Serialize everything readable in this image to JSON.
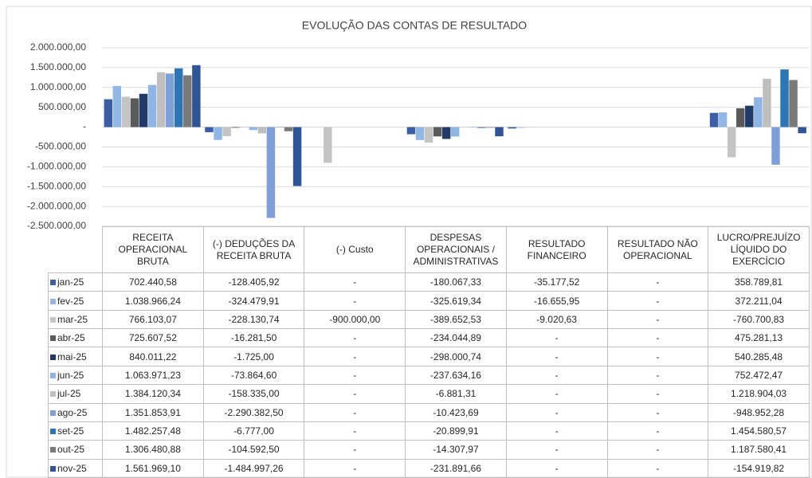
{
  "chart_data": {
    "type": "bar",
    "title": "EVOLUÇÃO DAS CONTAS DE RESULTADO",
    "categories": [
      "RECEITA OPERACIONAL BRUTA",
      "(-) DEDUÇÕES DA RECEITA BRUTA",
      "(-) Custo",
      "DESPESAS OPERACIONAIS / ADMINISTRATIVAS",
      "RESULTADO FINANCEIRO",
      "RESULTADO NÃO OPERACIONAL",
      "LUCRO/PREJUÍZO LÍQUIDO DO EXERCÍCIO"
    ],
    "ylim": [
      -2500000,
      2000000
    ],
    "yticks": [
      {
        "value": -2500000,
        "label": "-2.500.000,00"
      },
      {
        "value": -2000000,
        "label": "-2.000.000,00"
      },
      {
        "value": -1500000,
        "label": "-1.500.000,00"
      },
      {
        "value": -1000000,
        "label": "-1.000.000,00"
      },
      {
        "value": -500000,
        "label": "-500.000,00"
      },
      {
        "value": 0,
        "label": "-"
      },
      {
        "value": 500000,
        "label": "500.000,00"
      },
      {
        "value": 1000000,
        "label": "1.000.000,00"
      },
      {
        "value": 1500000,
        "label": "1.500.000,00"
      },
      {
        "value": 2000000,
        "label": "2.000.000,00"
      }
    ],
    "grid": true,
    "series": [
      {
        "name": "jan-25",
        "color": "#3c5ea6",
        "values": [
          702440.58,
          -128405.92,
          0,
          -180067.33,
          -35177.52,
          0,
          358789.81
        ],
        "value_labels": [
          "702.440,58",
          "-128.405,92",
          "-",
          "-180.067,33",
          "-35.177,52",
          "-",
          "358.789,81"
        ]
      },
      {
        "name": "fev-25",
        "color": "#92b7e5",
        "values": [
          1038966.24,
          -324479.91,
          0,
          -325619.34,
          -16655.95,
          0,
          372211.04
        ],
        "value_labels": [
          "1.038.966,24",
          "-324.479,91",
          "-",
          "-325.619,34",
          "-16.655,95",
          "-",
          "372.211,04"
        ]
      },
      {
        "name": "mar-25",
        "color": "#c4c4c4",
        "values": [
          766103.07,
          -228130.74,
          -900000,
          -389652.53,
          -9020.63,
          0,
          -760700.83
        ],
        "value_labels": [
          "766.103,07",
          "-228.130,74",
          "-900.000,00",
          "-389.652,53",
          "-9.020,63",
          "-",
          "-760.700,83"
        ]
      },
      {
        "name": "abr-25",
        "color": "#5a5a5a",
        "values": [
          725607.52,
          -16281.5,
          0,
          -234044.89,
          0,
          0,
          475281.13
        ],
        "value_labels": [
          "725.607,52",
          "-16.281,50",
          "-",
          "-234.044,89",
          "-",
          "-",
          "475.281,13"
        ]
      },
      {
        "name": "mai-25",
        "color": "#223a68",
        "values": [
          840011.22,
          -1725,
          0,
          -298000.74,
          0,
          0,
          540285.48
        ],
        "value_labels": [
          "840.011,22",
          "-1.725,00",
          "-",
          "-298.000,74",
          "-",
          "-",
          "540.285,48"
        ]
      },
      {
        "name": "jun-25",
        "color": "#8fb5e4",
        "values": [
          1063971.23,
          -73864.6,
          0,
          -237634.16,
          0,
          0,
          752472.47
        ],
        "value_labels": [
          "1.063.971,23",
          "-73.864,60",
          "-",
          "-237.634,16",
          "-",
          "-",
          "752.472,47"
        ]
      },
      {
        "name": "jul-25",
        "color": "#bfbfbf",
        "values": [
          1384120.34,
          -158335,
          0,
          -6881.31,
          0,
          0,
          1218904.03
        ],
        "value_labels": [
          "1.384.120,34",
          "-158.335,00",
          "-",
          "-6.881,31",
          "-",
          "-",
          "1.218.904,03"
        ]
      },
      {
        "name": "ago-25",
        "color": "#7f9fd9",
        "values": [
          1351853.91,
          -2290382.5,
          0,
          -10423.69,
          0,
          0,
          -948952.28
        ],
        "value_labels": [
          "1.351.853,91",
          "-2.290.382,50",
          "-",
          "-10.423,69",
          "-",
          "-",
          "-948.952,28"
        ]
      },
      {
        "name": "set-25",
        "color": "#2e75b6",
        "values": [
          1482257.48,
          -6777,
          0,
          -20899.91,
          0,
          0,
          1454580.57
        ],
        "value_labels": [
          "1.482.257,48",
          "-6.777,00",
          "-",
          "-20.899,91",
          "-",
          "-",
          "1.454.580,57"
        ]
      },
      {
        "name": "out-25",
        "color": "#7a7a7a",
        "values": [
          1306480.88,
          -104592.5,
          0,
          -14307.97,
          0,
          0,
          1187580.41
        ],
        "value_labels": [
          "1.306.480,88",
          "-104.592,50",
          "-",
          "-14.307,97",
          "-",
          "-",
          "1.187.580,41"
        ]
      },
      {
        "name": "nov-25",
        "color": "#2f5597",
        "values": [
          1561969.1,
          -1484997.26,
          0,
          -231891.66,
          0,
          0,
          -154919.82
        ],
        "value_labels": [
          "1.561.969,10",
          "-1.484.997,26",
          "-",
          "-231.891,66",
          "-",
          "-",
          "-154.919,82"
        ]
      }
    ]
  }
}
